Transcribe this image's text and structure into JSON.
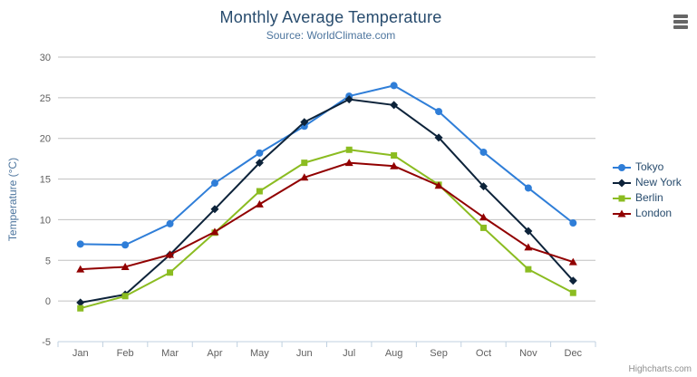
{
  "title": "Monthly Average Temperature",
  "subtitle": "Source: WorldClimate.com",
  "credits": "Highcharts.com",
  "icons": {
    "export_menu": "hamburger-menu-icon"
  },
  "colors": {
    "title": "#274b6d",
    "subtitle": "#4d759e",
    "axis_title": "#4d759e",
    "axis_labels": "#606060",
    "grid": "#c0c0c0",
    "axis_line": "#c0d0e0",
    "legend_text": "#274b6d",
    "credits_text": "#909090",
    "background": "#ffffff"
  },
  "chart_data": {
    "type": "line",
    "title": "Monthly Average Temperature",
    "subtitle": "Source: WorldClimate.com",
    "xlabel": "",
    "ylabel": "Temperature (°C)",
    "categories": [
      "Jan",
      "Feb",
      "Mar",
      "Apr",
      "May",
      "Jun",
      "Jul",
      "Aug",
      "Sep",
      "Oct",
      "Nov",
      "Dec"
    ],
    "ylim": [
      -5,
      30
    ],
    "ytick_step": 5,
    "grid": "horizontal",
    "legend_position": "right",
    "series": [
      {
        "name": "Tokyo",
        "color": "#2f7ed8",
        "marker": "circle",
        "values": [
          7.0,
          6.9,
          9.5,
          14.5,
          18.2,
          21.5,
          25.2,
          26.5,
          23.3,
          18.3,
          13.9,
          9.6
        ]
      },
      {
        "name": "New York",
        "color": "#0d233a",
        "marker": "diamond",
        "values": [
          -0.2,
          0.8,
          5.7,
          11.3,
          17.0,
          22.0,
          24.8,
          24.1,
          20.1,
          14.1,
          8.6,
          2.5
        ]
      },
      {
        "name": "Berlin",
        "color": "#8bbc21",
        "marker": "square",
        "values": [
          -0.9,
          0.6,
          3.5,
          8.4,
          13.5,
          17.0,
          18.6,
          17.9,
          14.3,
          9.0,
          3.9,
          1.0
        ]
      },
      {
        "name": "London",
        "color": "#910000",
        "marker": "triangle",
        "values": [
          3.9,
          4.2,
          5.7,
          8.5,
          11.9,
          15.2,
          17.0,
          16.6,
          14.2,
          10.3,
          6.6,
          4.8
        ]
      }
    ]
  }
}
